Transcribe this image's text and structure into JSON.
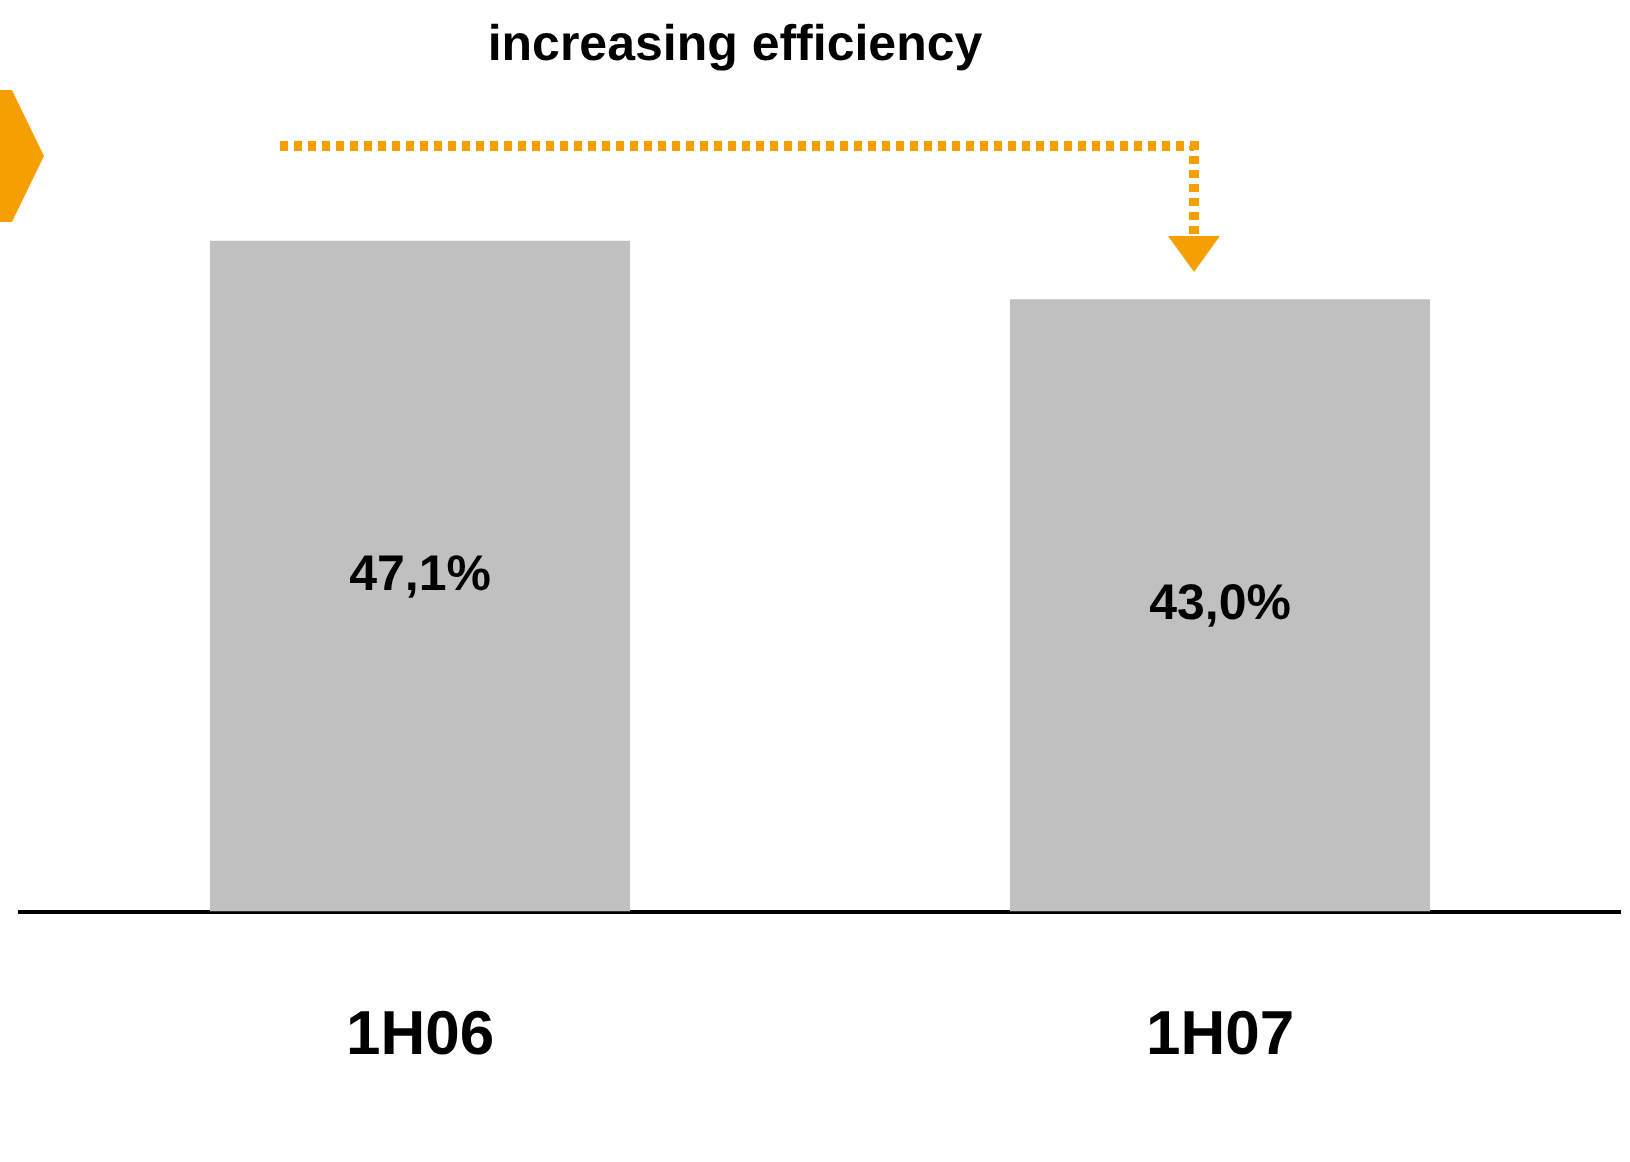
{
  "chart_data": {
    "type": "bar",
    "categories": [
      "1H06",
      "1H07"
    ],
    "values": [
      47.1,
      43.0
    ],
    "value_labels": [
      "47,1%",
      "43,0%"
    ],
    "color": "#c0c0c0",
    "annotations": [
      "increasing efficiency"
    ],
    "grid": false,
    "legend": false,
    "tick_labels": "x"
  }
}
